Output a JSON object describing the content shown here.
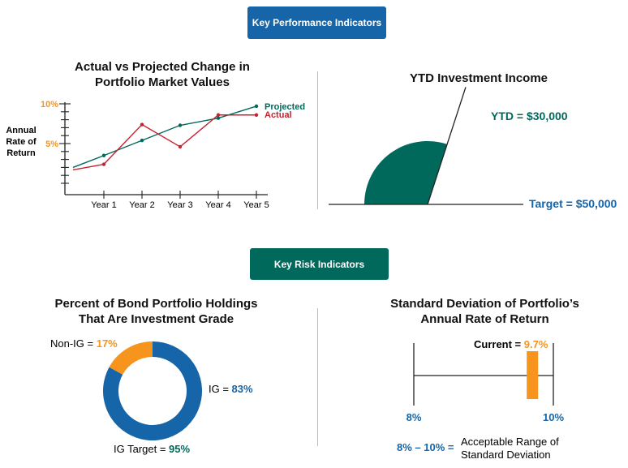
{
  "colors": {
    "blue": "#1565a8",
    "green": "#00695c",
    "orange": "#f7941d",
    "red": "#c8202f",
    "axis": "#222222"
  },
  "sections": {
    "kpi_label": "Key Performance Indicators",
    "kri_label": "Key Risk Indicators"
  },
  "chart_data": [
    {
      "type": "line",
      "title": "Actual vs Projected Change in Portfolio Market Values",
      "ylabel": "Annual Rate of Return",
      "categories": [
        "Year 1",
        "Year 2",
        "Year 3",
        "Year 4",
        "Year 5"
      ],
      "yticks_labeled": [
        "10%",
        "5%"
      ],
      "ylim": [
        0,
        10
      ],
      "series": [
        {
          "name": "Projected",
          "color": "#00695c",
          "start": 2.2,
          "values": [
            3.7,
            5.6,
            7.5,
            8.4,
            9.9
          ]
        },
        {
          "name": "Actual",
          "color": "#c8202f",
          "start": 1.9,
          "values": [
            2.6,
            7.6,
            4.8,
            8.8,
            8.8
          ]
        }
      ]
    },
    {
      "type": "gauge",
      "title": "YTD Investment Income",
      "labels": {
        "ytd": "YTD = $30,000",
        "target": "Target = $50,000"
      },
      "ytd": 30000,
      "target": 50000
    },
    {
      "type": "pie",
      "title": "Percent of Bond Portfolio Holdings That Are Investment Grade",
      "slices": [
        {
          "label": "IG",
          "value": 83,
          "color": "#1565a8"
        },
        {
          "label": "Non-IG",
          "value": 17,
          "color": "#f7941d"
        }
      ],
      "labels": {
        "non_ig_prefix": "Non-IG = ",
        "non_ig_value": "17%",
        "ig_prefix": "IG = ",
        "ig_value": "83%",
        "target_prefix": "IG Target = ",
        "target_value": "95%"
      }
    },
    {
      "type": "range",
      "title": "Standard Deviation of Portfolio’s Annual Rate of Return",
      "min": 8,
      "max": 10,
      "current": 9.7,
      "labels": {
        "current_prefix": "Current = ",
        "current_value": "9.7%",
        "min": "8%",
        "max": "10%",
        "range": "8% – 10% =",
        "range_desc_line1": "Acceptable Range of",
        "range_desc_line2": "Standard Deviation"
      }
    }
  ]
}
